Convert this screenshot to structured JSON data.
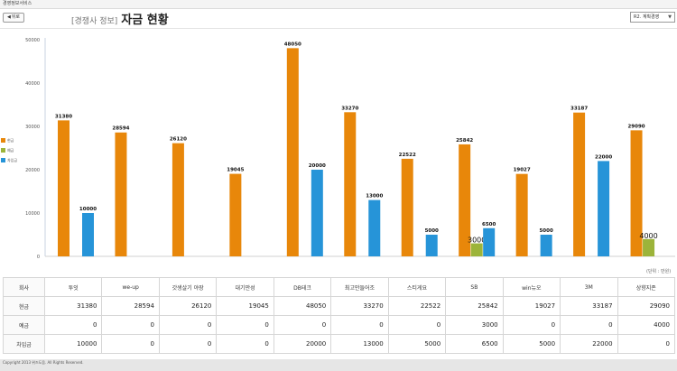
{
  "window": {
    "title": "경영정보서비스"
  },
  "toolbar": {
    "back_label": "뒤로",
    "back_arrow": "◀"
  },
  "header": {
    "breadcrumb": "[경쟁사 정보]",
    "title": "자금 현황"
  },
  "dropdown": {
    "selected": "R2. 계획경영",
    "caret": "▼"
  },
  "units_note": "(단위 : 만원)",
  "colors": {
    "orange": "#E8870A",
    "green": "#9CB43A",
    "blue": "#2694D8"
  },
  "legend": {
    "items": [
      {
        "label": "현금",
        "color": "#E8870A"
      },
      {
        "label": "예금",
        "color": "#9CB43A"
      },
      {
        "label": "차입금",
        "color": "#2694D8"
      }
    ]
  },
  "chart_data": {
    "type": "bar",
    "categories": [
      "투잇",
      "we-up",
      "갓생살기 야장",
      "대기만성",
      "DB테크",
      "최고만들어조",
      "스티게요",
      "SB",
      "win뉴오",
      "3M",
      "상향지존"
    ],
    "series": [
      {
        "name": "현금",
        "values": [
          31380,
          28594,
          26120,
          19045,
          48050,
          33270,
          22522,
          25842,
          19027,
          33187,
          29090
        ]
      },
      {
        "name": "예금",
        "values": [
          0,
          0,
          0,
          0,
          0,
          0,
          0,
          3000,
          0,
          0,
          4000
        ]
      },
      {
        "name": "차입금",
        "values": [
          10000,
          0,
          0,
          0,
          20000,
          13000,
          5000,
          6500,
          5000,
          22000,
          0
        ]
      }
    ],
    "ylim": [
      0,
      50000
    ],
    "yticks": [
      0,
      10000,
      20000,
      30000,
      40000,
      50000
    ],
    "grid": false,
    "legend_position": "left"
  },
  "table": {
    "columns": [
      "회사",
      "투잇",
      "we-up",
      "갓생살기 야장",
      "대기만성",
      "DB테크",
      "최고만들어조",
      "스티게요",
      "SB",
      "win뉴오",
      "3M",
      "상향지존"
    ],
    "rows": [
      {
        "label": "현금",
        "values": [
          "31380",
          "28594",
          "26120",
          "19045",
          "48050",
          "33270",
          "22522",
          "25842",
          "19027",
          "33187",
          "29090"
        ]
      },
      {
        "label": "예금",
        "values": [
          "0",
          "0",
          "0",
          "0",
          "0",
          "0",
          "0",
          "3000",
          "0",
          "0",
          "4000"
        ]
      },
      {
        "label": "차입금",
        "values": [
          "10000",
          "0",
          "0",
          "0",
          "20000",
          "13000",
          "5000",
          "6500",
          "5000",
          "22000",
          "0"
        ]
      }
    ]
  },
  "footer": {
    "copyright": "Copyright 2013 위즈도움. All Rights Reserved."
  }
}
